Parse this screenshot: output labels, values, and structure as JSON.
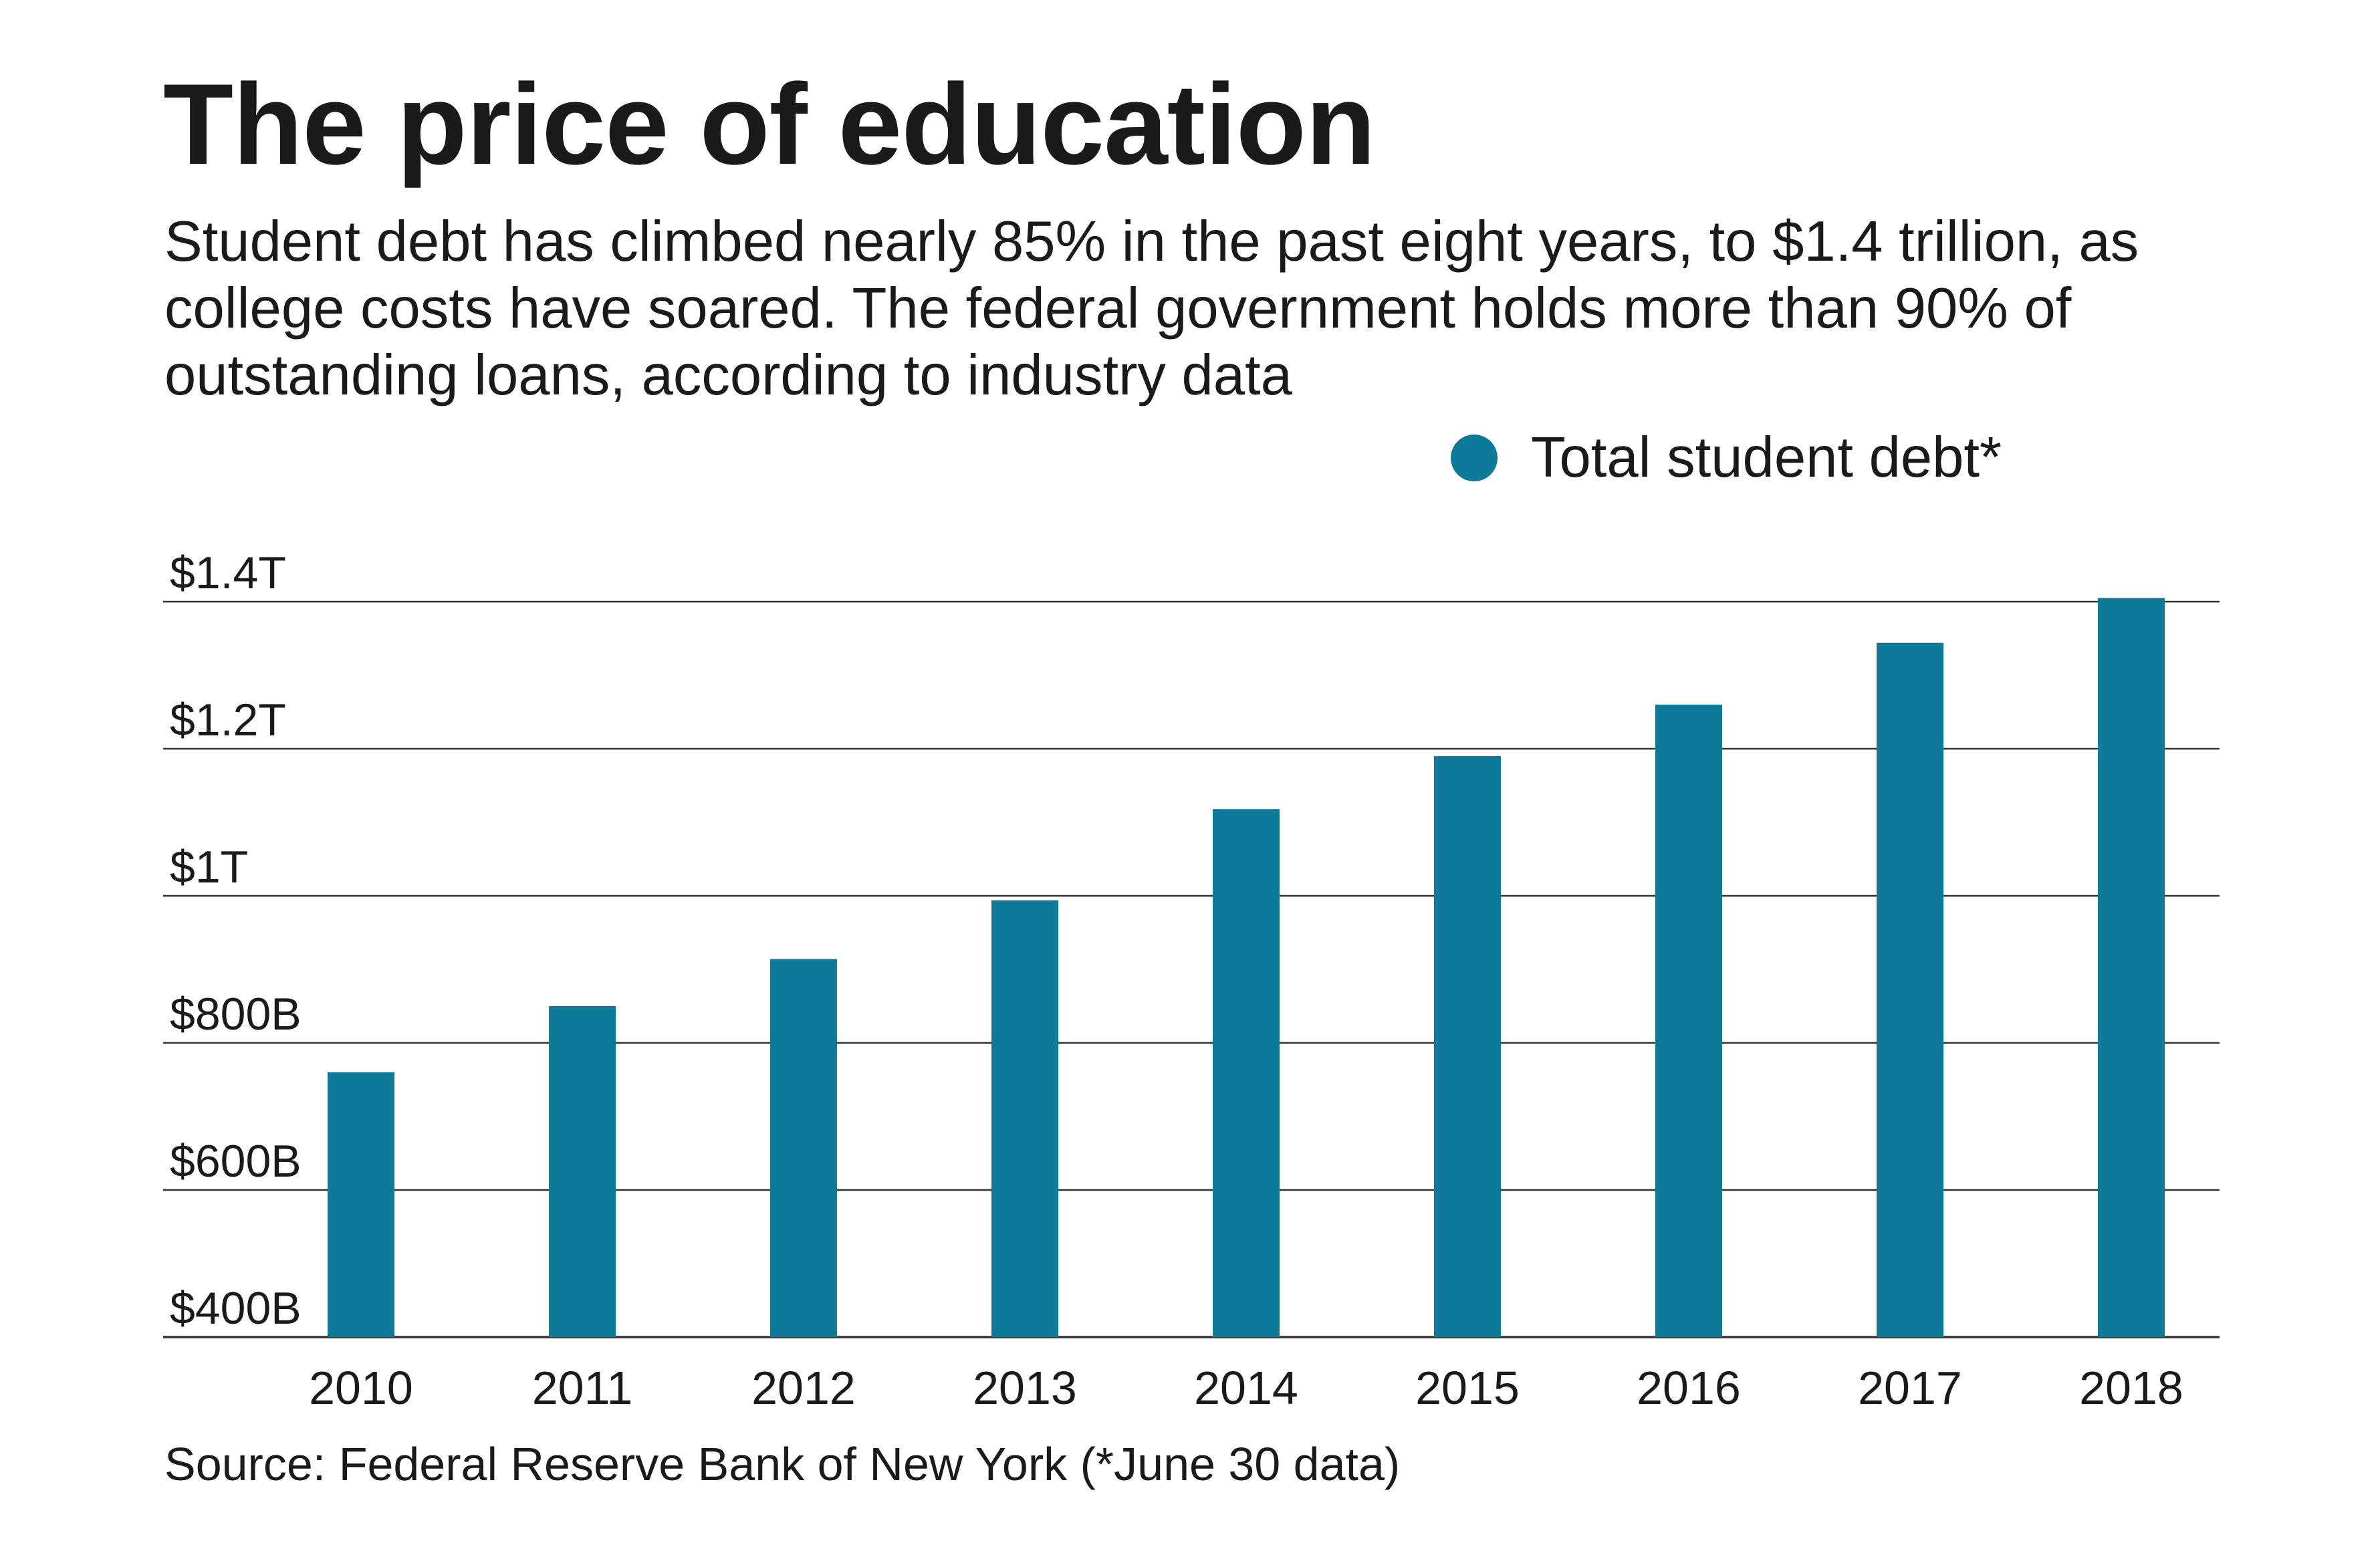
{
  "title": "The price of education",
  "subtitle": "Student debt has climbed nearly 85% in the past eight years, to $1.4 trillion, as college costs have soared. The federal government holds more than 90% of outstanding loans, according to industry data",
  "legend": {
    "label": "Total student debt*"
  },
  "source": "Source: Federal Reserve Bank of New York (*June 30 data)",
  "colors": {
    "bar": "#0e7a99",
    "grid": "#333333",
    "text": "#1a1a1a"
  },
  "chart_data": {
    "type": "bar",
    "categories": [
      "2010",
      "2011",
      "2012",
      "2013",
      "2014",
      "2015",
      "2016",
      "2017",
      "2018"
    ],
    "series": [
      {
        "name": "Total student debt*",
        "values": [
          760,
          850,
          914,
          994,
          1118,
          1190,
          1260,
          1344,
          1405
        ]
      }
    ],
    "unit": "billions of dollars",
    "ylim": [
      400,
      1400
    ],
    "yticks": [
      400,
      600,
      800,
      1000,
      1200,
      1400
    ],
    "ytick_labels": [
      "$400B",
      "$600B",
      "$800B",
      "$1T",
      "$1.2T",
      "$1.4T"
    ],
    "grid": true,
    "legend_position": "top-right"
  }
}
